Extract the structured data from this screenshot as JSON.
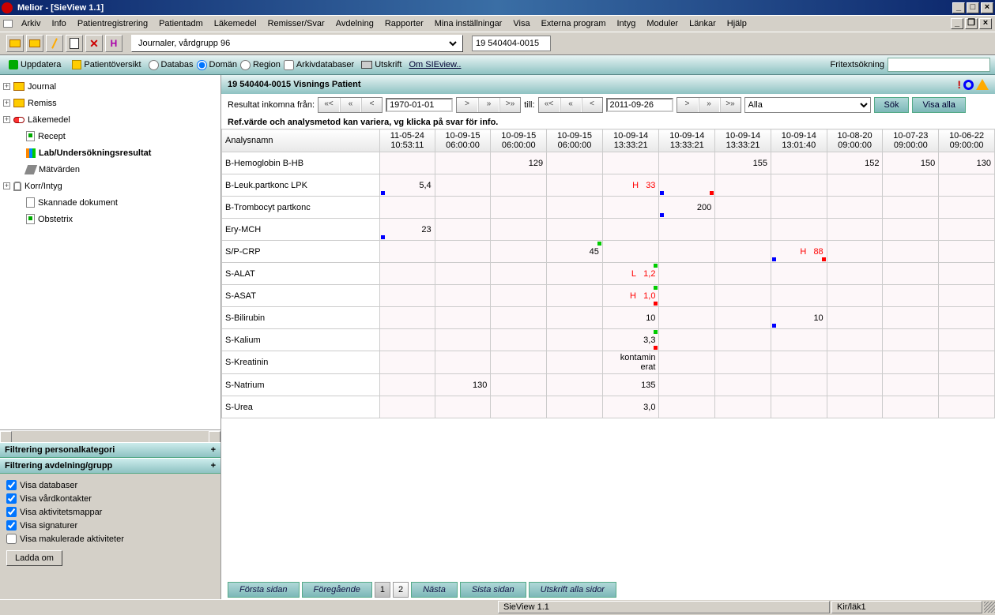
{
  "window": {
    "title": "Melior - [SieView 1.1]"
  },
  "menu": [
    "Arkiv",
    "Info",
    "Patientregistrering",
    "Patientadm",
    "Läkemedel",
    "Remisser/Svar",
    "Avdelning",
    "Rapporter",
    "Mina inställningar",
    "Visa",
    "Externa program",
    "Intyg",
    "Moduler",
    "Länkar",
    "Hjälp"
  ],
  "toolbar": {
    "journal_select": "Journaler, vårdgrupp 96",
    "patient_id": "19 540404-0015"
  },
  "subbar": {
    "uppdatera": "Uppdatera",
    "oversikt": "Patientöversikt",
    "databas": "Databas",
    "doman": "Domän",
    "region": "Region",
    "arkiv": "Arkivdatabaser",
    "utskrift": "Utskrift",
    "om": "Om SIEview..",
    "fritext_label": "Fritextsökning"
  },
  "tree": [
    {
      "label": "Journal",
      "icon": "folder",
      "exp": "+",
      "indent": 0
    },
    {
      "label": "Remiss",
      "icon": "folder",
      "exp": "+",
      "indent": 0
    },
    {
      "label": "Läkemedel",
      "icon": "pill",
      "exp": "+",
      "indent": 0
    },
    {
      "label": "Recept",
      "icon": "doc-green",
      "exp": "",
      "indent": 1
    },
    {
      "label": "Lab/Undersökningsresultat",
      "icon": "bars",
      "exp": "",
      "indent": 1,
      "selected": true
    },
    {
      "label": "Mätvärden",
      "icon": "pencil",
      "exp": "",
      "indent": 1
    },
    {
      "label": "Korr/Intyg",
      "icon": "clip",
      "exp": "+",
      "indent": 0
    },
    {
      "label": "Skannade dokument",
      "icon": "doc",
      "exp": "",
      "indent": 1
    },
    {
      "label": "Obstetrix",
      "icon": "doc-green",
      "exp": "",
      "indent": 1
    }
  ],
  "filters": {
    "h1": "Filtrering personalkategori",
    "h2": "Filtrering avdelning/grupp",
    "opts": [
      "Visa databaser",
      "Visa vårdkontakter",
      "Visa aktivitetsmappar",
      "Visa signaturer",
      "Visa makulerade aktiviteter"
    ],
    "checked": [
      true,
      true,
      true,
      true,
      false
    ],
    "reload": "Ladda om"
  },
  "patient_header": "19 540404-0015 Visnings Patient",
  "daterow": {
    "from_label": "Resultat inkomna från:",
    "from_date": "1970-01-01",
    "to_label": "till:",
    "to_date": "2011-09-26",
    "alla": "Alla",
    "sok": "Sök",
    "visa_alla": "Visa alla"
  },
  "ref_text": "Ref.värde och analysmetod kan variera, vg klicka på svar för info.",
  "grid": {
    "name_hdr": "Analysnamn",
    "cols": [
      {
        "d": "11-05-24",
        "t": "10:53:11"
      },
      {
        "d": "10-09-15",
        "t": "06:00:00"
      },
      {
        "d": "10-09-15",
        "t": "06:00:00"
      },
      {
        "d": "10-09-15",
        "t": "06:00:00"
      },
      {
        "d": "10-09-14",
        "t": "13:33:21"
      },
      {
        "d": "10-09-14",
        "t": "13:33:21"
      },
      {
        "d": "10-09-14",
        "t": "13:33:21"
      },
      {
        "d": "10-09-14",
        "t": "13:01:40"
      },
      {
        "d": "10-08-20",
        "t": "09:00:00"
      },
      {
        "d": "10-07-23",
        "t": "09:00:00"
      },
      {
        "d": "10-06-22",
        "t": "09:00:00"
      }
    ],
    "rows": [
      {
        "name": "B-Hemoglobin B-HB",
        "cells": [
          "",
          "",
          "129",
          "",
          "",
          "",
          "155",
          "",
          "152",
          "150",
          "130"
        ],
        "markers": [
          [
            "",
            "",
            "",
            "",
            "",
            "",
            "",
            "",
            "",
            "",
            ""
          ]
        ]
      },
      {
        "name": "B-Leuk.partkonc LPK",
        "cells": [
          "5,4",
          "",
          "",
          "",
          "",
          "",
          "",
          "",
          "",
          "",
          ""
        ],
        "flag5": "H",
        "flag5v": "33",
        "m0": "blue-bl",
        "m5b": "blue-bl",
        "m5r": "red-br"
      },
      {
        "name": "B-Trombocyt partkonc",
        "cells": [
          "",
          "",
          "",
          "",
          "",
          "200",
          "",
          "",
          "",
          "",
          ""
        ],
        "m5": "blue-bl"
      },
      {
        "name": "Ery-MCH",
        "cells": [
          "23",
          "",
          "",
          "",
          "",
          "",
          "",
          "",
          "",
          "",
          ""
        ],
        "m0": "blue-bl"
      },
      {
        "name": "S/P-CRP",
        "cells": [
          "",
          "",
          "",
          "45",
          "",
          "",
          "",
          "",
          "",
          "",
          ""
        ],
        "flag8": "H",
        "flag8v": "88",
        "m3": "green-tr",
        "m7": "blue-bl",
        "m7r": "red-br"
      },
      {
        "name": "S-ALAT",
        "cells": [
          "",
          "",
          "",
          "",
          "",
          "",
          "",
          "",
          "",
          "",
          ""
        ],
        "flag5": "L",
        "flag5v": "1,2",
        "m4": "green-tr"
      },
      {
        "name": "S-ASAT",
        "cells": [
          "",
          "",
          "",
          "",
          "",
          "",
          "",
          "",
          "",
          "",
          ""
        ],
        "flag5": "H",
        "flag5v": "1,0",
        "m4": "green-tr",
        "m4r": "red-br"
      },
      {
        "name": "S-Bilirubin",
        "cells": [
          "",
          "",
          "",
          "",
          "10",
          "",
          "",
          "10",
          "",
          "",
          ""
        ],
        "m7": "blue-bl"
      },
      {
        "name": "S-Kalium",
        "cells": [
          "",
          "",
          "",
          "",
          "3,3",
          "",
          "",
          "",
          "",
          "",
          ""
        ],
        "m4": "green-tr",
        "m4r2": "red-br"
      },
      {
        "name": "S-Kreatinin",
        "cells": [
          "",
          "",
          "",
          "",
          "kontamin\nerat",
          "",
          "",
          "",
          "",
          "",
          ""
        ]
      },
      {
        "name": "S-Natrium",
        "cells": [
          "",
          "130",
          "",
          "",
          "135",
          "",
          "",
          "",
          "",
          "",
          ""
        ]
      },
      {
        "name": "S-Urea",
        "cells": [
          "",
          "",
          "",
          "",
          "3,0",
          "",
          "",
          "",
          "",
          "",
          ""
        ]
      }
    ]
  },
  "pager": {
    "first": "Första sidan",
    "prev": "Föregående",
    "p1": "1",
    "p2": "2",
    "next": "Nästa",
    "last": "Sista sidan",
    "print_all": "Utskrift alla sidor"
  },
  "status": {
    "sieview": "SieView 1.1",
    "unit": "Kir/läk1"
  }
}
